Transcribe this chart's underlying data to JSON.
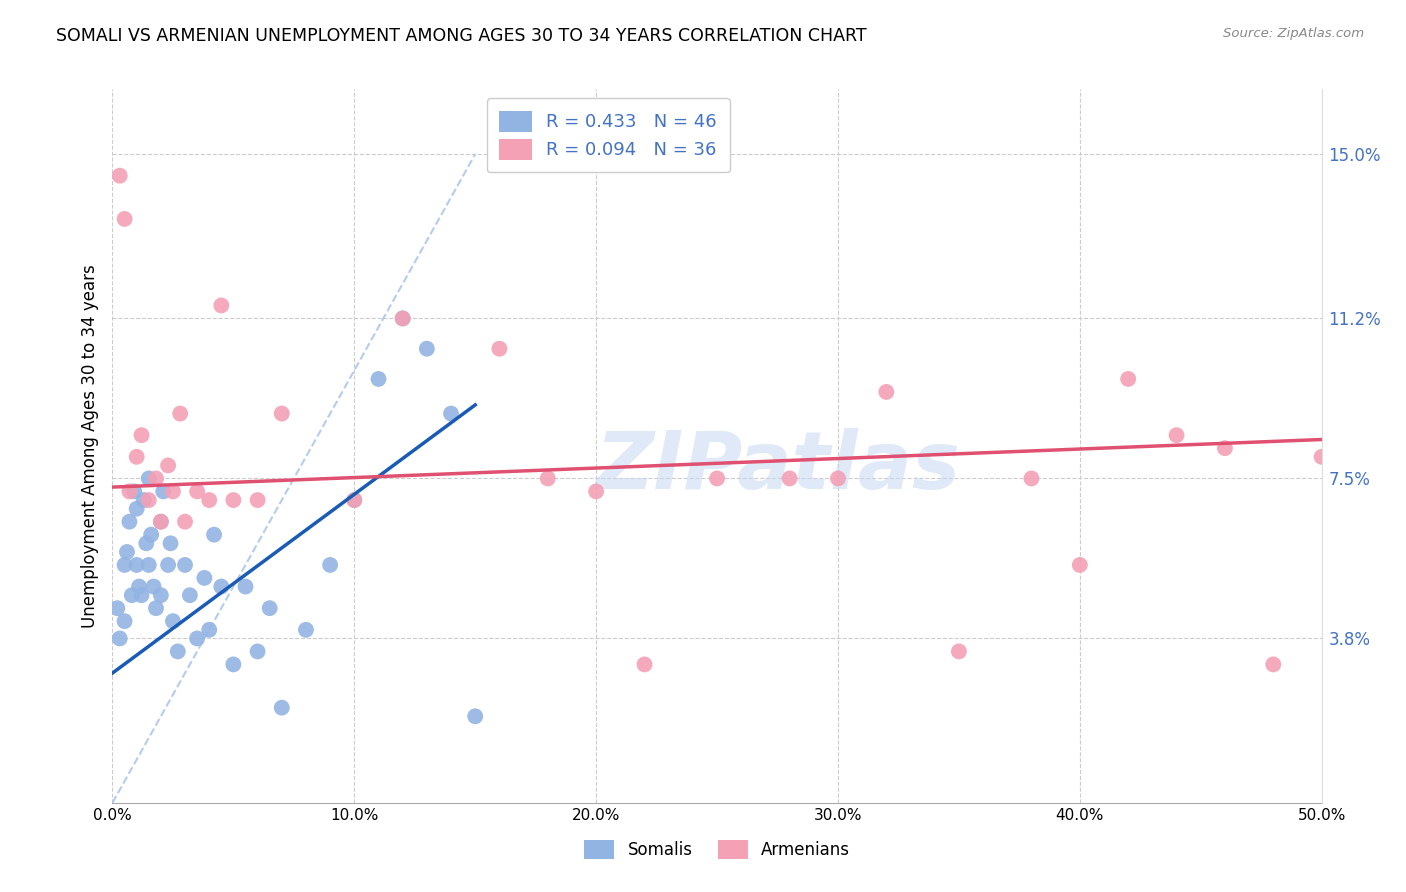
{
  "title": "SOMALI VS ARMENIAN UNEMPLOYMENT AMONG AGES 30 TO 34 YEARS CORRELATION CHART",
  "source": "Source: ZipAtlas.com",
  "ylabel": "Unemployment Among Ages 30 to 34 years",
  "ytick_labels": [
    "3.8%",
    "7.5%",
    "11.2%",
    "15.0%"
  ],
  "ytick_values": [
    3.8,
    7.5,
    11.2,
    15.0
  ],
  "xlabel_ticks": [
    "0.0%",
    "10.0%",
    "20.0%",
    "30.0%",
    "40.0%",
    "50.0%"
  ],
  "xlim": [
    0,
    50
  ],
  "ylim": [
    0,
    16.5
  ],
  "somali_R": 0.433,
  "somali_N": 46,
  "armenian_R": 0.094,
  "armenian_N": 36,
  "somali_color": "#92b4e3",
  "armenian_color": "#f4a0b5",
  "somali_line_color": "#1a5cb5",
  "armenian_line_color": "#e05070",
  "diagonal_color": "#a8c4e8",
  "background_color": "#ffffff",
  "watermark": "ZIPatlas",
  "somali_x": [
    0.2,
    0.3,
    0.5,
    0.5,
    0.6,
    0.7,
    0.8,
    0.9,
    1.0,
    1.0,
    1.1,
    1.2,
    1.3,
    1.4,
    1.5,
    1.5,
    1.6,
    1.7,
    1.8,
    2.0,
    2.0,
    2.1,
    2.3,
    2.4,
    2.5,
    2.7,
    3.0,
    3.2,
    3.5,
    3.8,
    4.0,
    4.2,
    4.5,
    5.0,
    5.5,
    6.0,
    6.5,
    7.0,
    8.0,
    9.0,
    10.0,
    11.0,
    12.0,
    13.0,
    14.0,
    15.0
  ],
  "somali_y": [
    4.5,
    3.8,
    5.5,
    4.2,
    5.8,
    6.5,
    4.8,
    7.2,
    5.5,
    6.8,
    5.0,
    4.8,
    7.0,
    6.0,
    5.5,
    7.5,
    6.2,
    5.0,
    4.5,
    6.5,
    4.8,
    7.2,
    5.5,
    6.0,
    4.2,
    3.5,
    5.5,
    4.8,
    3.8,
    5.2,
    4.0,
    6.2,
    5.0,
    3.2,
    5.0,
    3.5,
    4.5,
    2.2,
    4.0,
    5.5,
    7.0,
    9.8,
    11.2,
    10.5,
    9.0,
    2.0
  ],
  "armenian_x": [
    0.3,
    0.5,
    0.7,
    1.0,
    1.2,
    1.5,
    1.8,
    2.0,
    2.3,
    2.5,
    2.8,
    3.0,
    3.5,
    4.0,
    4.5,
    5.0,
    6.0,
    7.0,
    10.0,
    12.0,
    16.0,
    18.0,
    20.0,
    22.0,
    25.0,
    28.0,
    30.0,
    32.0,
    35.0,
    38.0,
    40.0,
    42.0,
    44.0,
    46.0,
    48.0,
    50.0
  ],
  "armenian_y": [
    14.5,
    13.5,
    7.2,
    8.0,
    8.5,
    7.0,
    7.5,
    6.5,
    7.8,
    7.2,
    9.0,
    6.5,
    7.2,
    7.0,
    11.5,
    7.0,
    7.0,
    9.0,
    7.0,
    11.2,
    10.5,
    7.5,
    7.2,
    3.2,
    7.5,
    7.5,
    7.5,
    9.5,
    3.5,
    7.5,
    5.5,
    9.8,
    8.5,
    8.2,
    3.2,
    8.0
  ],
  "somali_line_x0": 0,
  "somali_line_y0": 3.0,
  "somali_line_x1": 15,
  "somali_line_y1": 9.2,
  "armenian_line_x0": 0,
  "armenian_line_y0": 7.3,
  "armenian_line_x1": 50,
  "armenian_line_y1": 8.4,
  "diag_x0": 0,
  "diag_y0": 0,
  "diag_x1": 15,
  "diag_y1": 15
}
